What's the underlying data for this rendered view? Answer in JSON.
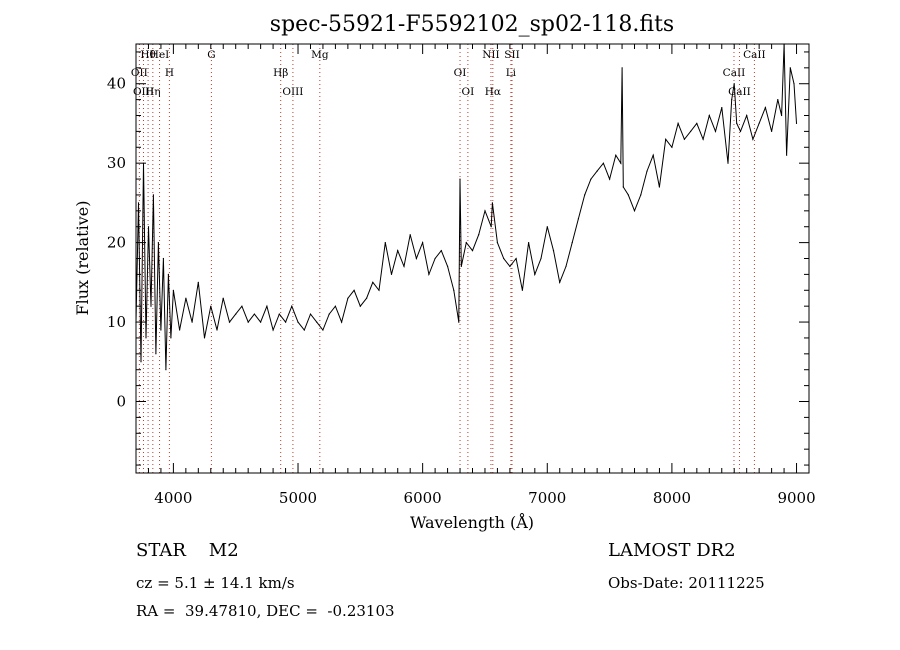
{
  "window": {
    "title": "spec-55921-F5592102_sp02-118.fits"
  },
  "chart_data": {
    "type": "line",
    "title": "spec-55921-F5592102_sp02-118.fits",
    "xlabel": "Wavelength (Å)",
    "ylabel": "Flux (relative)",
    "xlim": [
      3700,
      9100
    ],
    "ylim": [
      -9,
      45
    ],
    "xticks": [
      "4000",
      "5000",
      "6000",
      "7000",
      "8000",
      "9000"
    ],
    "yticks": [
      "0",
      "10",
      "20",
      "30",
      "40"
    ],
    "grid": false,
    "series": [
      {
        "x": [
          3700,
          3720,
          3740,
          3760,
          3780,
          3800,
          3820,
          3840,
          3860,
          3880,
          3900,
          3920,
          3940,
          3960,
          3980,
          4000,
          4050,
          4100,
          4150,
          4200,
          4250,
          4300,
          4350,
          4400,
          4450,
          4500,
          4550,
          4600,
          4650,
          4700,
          4750,
          4800,
          4850,
          4900,
          4950,
          5000,
          5050,
          5100,
          5150,
          5200,
          5250,
          5300,
          5350,
          5400,
          5450,
          5500,
          5550,
          5600,
          5650,
          5700,
          5750,
          5800,
          5850,
          5900,
          5950,
          6000,
          6050,
          6100,
          6150,
          6200,
          6250,
          6290,
          6300,
          6310,
          6350,
          6400,
          6450,
          6500,
          6550,
          6560,
          6600,
          6650,
          6700,
          6750,
          6800,
          6850,
          6900,
          6950,
          7000,
          7050,
          7100,
          7150,
          7200,
          7250,
          7300,
          7350,
          7400,
          7450,
          7500,
          7550,
          7590,
          7600,
          7610,
          7650,
          7700,
          7750,
          7800,
          7850,
          7900,
          7950,
          8000,
          8050,
          8100,
          8150,
          8200,
          8250,
          8300,
          8350,
          8400,
          8450,
          8480,
          8500,
          8520,
          8550,
          8600,
          8650,
          8700,
          8750,
          8800,
          8850,
          8880,
          8900,
          8920,
          8950,
          8980,
          9000
        ],
        "y": [
          10,
          25,
          5,
          30,
          8,
          22,
          12,
          26,
          6,
          20,
          9,
          18,
          4,
          16,
          8,
          14,
          9,
          13,
          10,
          15,
          8,
          12,
          9,
          13,
          10,
          11,
          12,
          10,
          11,
          10,
          12,
          9,
          11,
          10,
          12,
          10,
          9,
          11,
          10,
          9,
          11,
          12,
          10,
          13,
          14,
          12,
          13,
          15,
          14,
          20,
          16,
          19,
          17,
          21,
          18,
          20,
          16,
          18,
          19,
          17,
          14,
          10,
          28,
          17,
          20,
          19,
          21,
          24,
          22,
          25,
          20,
          18,
          17,
          18,
          14,
          20,
          16,
          18,
          22,
          19,
          15,
          17,
          20,
          23,
          26,
          28,
          29,
          30,
          28,
          31,
          30,
          42,
          27,
          26,
          24,
          26,
          29,
          31,
          27,
          33,
          32,
          35,
          33,
          34,
          35,
          33,
          36,
          34,
          37,
          30,
          38,
          40,
          35,
          34,
          36,
          33,
          35,
          37,
          34,
          38,
          36,
          45,
          31,
          42,
          40,
          35
        ]
      }
    ],
    "reference_lines": [
      {
        "label": "Hθ",
        "x": 3797
      },
      {
        "label": "OII",
        "x": 3727
      },
      {
        "label": "OIII",
        "x": 3760
      },
      {
        "label": "HeI",
        "x": 3889
      },
      {
        "label": "H",
        "x": 3968
      },
      {
        "label": "Hη",
        "x": 3835
      },
      {
        "label": "G",
        "x": 4305
      },
      {
        "label": "Hβ",
        "x": 4861
      },
      {
        "label": "OIII",
        "x": 4959
      },
      {
        "label": "Mg",
        "x": 5175
      },
      {
        "label": "OI",
        "x": 6300
      },
      {
        "label": "OI",
        "x": 6363
      },
      {
        "label": "NII",
        "x": 6548
      },
      {
        "label": "Li",
        "x": 6708
      },
      {
        "label": "Hα",
        "x": 6563
      },
      {
        "label": "SII",
        "x": 6717
      },
      {
        "label": "CaII",
        "x": 8498
      },
      {
        "label": "CaII",
        "x": 8542
      },
      {
        "label": "CaII",
        "x": 8662
      }
    ]
  },
  "info": {
    "class_line": "STAR    M2",
    "survey": "LAMOST DR2",
    "cz_line": "cz = 5.1 ± 14.1 km/s",
    "obs_date": "Obs-Date: 20111225",
    "radec_line": "RA =  39.47810, DEC =  -0.23103"
  },
  "colors": {
    "line": "#000000",
    "reference": "#c0392b",
    "axes": "#000000",
    "background": "#ffffff"
  }
}
